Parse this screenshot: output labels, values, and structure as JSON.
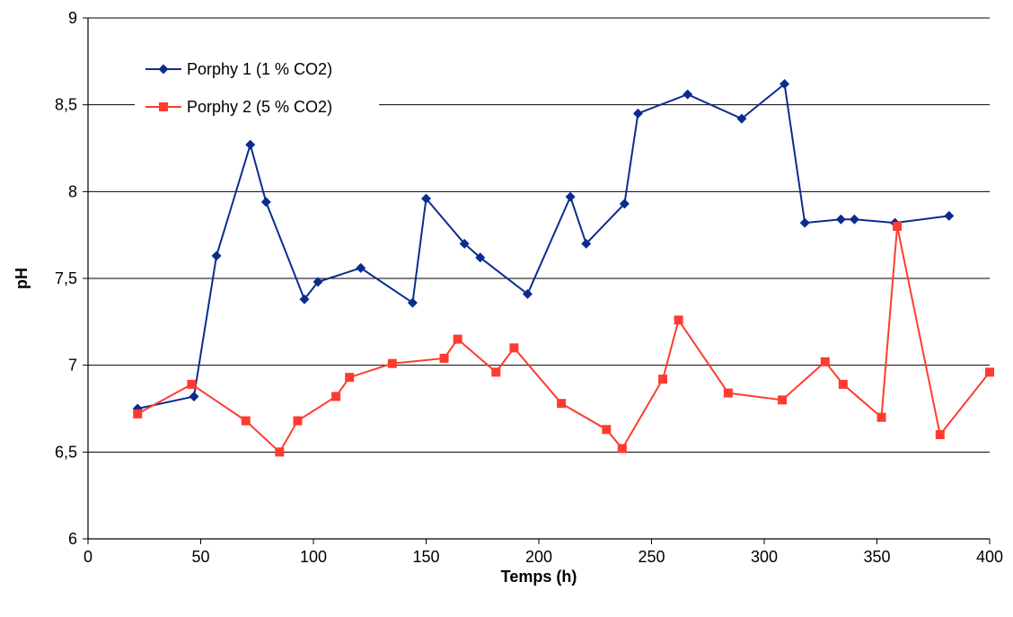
{
  "chart_data": {
    "type": "line",
    "title": "",
    "xlabel": "Temps (h)",
    "ylabel": "pH",
    "xlim": [
      0,
      400
    ],
    "ylim": [
      6,
      9
    ],
    "x_ticks": [
      "0",
      "50",
      "100",
      "150",
      "200",
      "250",
      "300",
      "350",
      "400"
    ],
    "y_ticks": [
      "6",
      "6,5",
      "7",
      "7,5",
      "8",
      "8,5",
      "9"
    ],
    "grid": "horizontal",
    "legend_position": "top-left",
    "series": [
      {
        "name": "Porphy 1 (1 % CO2)",
        "color": "#0B2C8F",
        "marker": "diamond",
        "points": [
          [
            22,
            6.75
          ],
          [
            47,
            6.82
          ],
          [
            57,
            7.63
          ],
          [
            72,
            8.27
          ],
          [
            79,
            7.94
          ],
          [
            96,
            7.38
          ],
          [
            102,
            7.48
          ],
          [
            121,
            7.56
          ],
          [
            144,
            7.36
          ],
          [
            150,
            7.96
          ],
          [
            167,
            7.7
          ],
          [
            174,
            7.62
          ],
          [
            195,
            7.41
          ],
          [
            214,
            7.97
          ],
          [
            221,
            7.7
          ],
          [
            238,
            7.93
          ],
          [
            244,
            8.45
          ],
          [
            266,
            8.56
          ],
          [
            290,
            8.42
          ],
          [
            309,
            8.62
          ],
          [
            318,
            7.82
          ],
          [
            334,
            7.84
          ],
          [
            340,
            7.84
          ],
          [
            358,
            7.82
          ],
          [
            382,
            7.86
          ]
        ]
      },
      {
        "name": "Porphy 2 (5 % CO2)",
        "color": "#FF3B2F",
        "marker": "square",
        "points": [
          [
            22,
            6.72
          ],
          [
            46,
            6.89
          ],
          [
            70,
            6.68
          ],
          [
            85,
            6.5
          ],
          [
            93,
            6.68
          ],
          [
            110,
            6.82
          ],
          [
            116,
            6.93
          ],
          [
            135,
            7.01
          ],
          [
            158,
            7.04
          ],
          [
            164,
            7.15
          ],
          [
            181,
            6.96
          ],
          [
            189,
            7.1
          ],
          [
            210,
            6.78
          ],
          [
            230,
            6.63
          ],
          [
            237,
            6.52
          ],
          [
            255,
            6.92
          ],
          [
            262,
            7.26
          ],
          [
            284,
            6.84
          ],
          [
            308,
            6.8
          ],
          [
            327,
            7.02
          ],
          [
            335,
            6.89
          ],
          [
            352,
            6.7
          ],
          [
            359,
            7.8
          ],
          [
            378,
            6.6
          ],
          [
            400,
            6.96
          ]
        ]
      }
    ]
  }
}
